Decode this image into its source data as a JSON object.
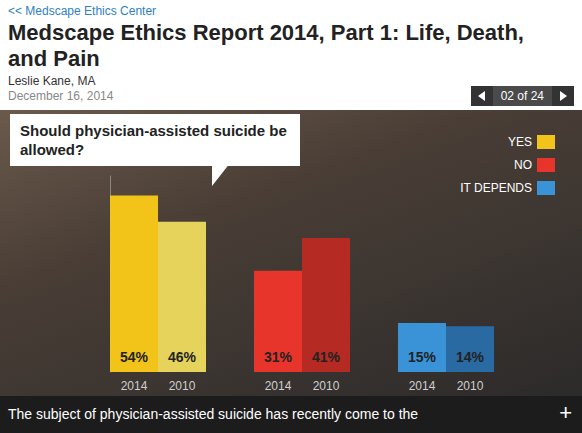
{
  "page": {
    "breadcrumb": "<< Medscape Ethics Center",
    "title": "Medscape Ethics Report 2014, Part 1: Life, Death, and Pain",
    "author": "Leslie Kane, MA",
    "date": "December 16, 2014",
    "pager": "02 of 24",
    "caption": "The subject of physician-assisted suicide has recently come to the",
    "expand": "+"
  },
  "chart_data": {
    "type": "bar",
    "title": "Should physician-assisted suicide be allowed?",
    "categories": [
      "2014",
      "2010"
    ],
    "series": [
      {
        "name": "YES",
        "color": "#f2c318",
        "colors": [
          "#f2c318",
          "#e6d35c"
        ],
        "values": [
          54,
          46
        ],
        "value_labels": [
          "54%",
          "46%"
        ]
      },
      {
        "name": "NO",
        "color": "#e8352b",
        "colors": [
          "#e8352b",
          "#b52a22"
        ],
        "values": [
          31,
          41
        ],
        "value_labels": [
          "31%",
          "41%"
        ]
      },
      {
        "name": "IT DEPENDS",
        "color": "#3a93d6",
        "colors": [
          "#3a93d6",
          "#2a6aa3"
        ],
        "values": [
          15,
          14
        ],
        "value_labels": [
          "15%",
          "14%"
        ]
      }
    ],
    "ylim": [
      0,
      60
    ],
    "yticks": [],
    "grid": false,
    "data_labels": true,
    "tick_labels": "x",
    "legend": "top-right"
  }
}
